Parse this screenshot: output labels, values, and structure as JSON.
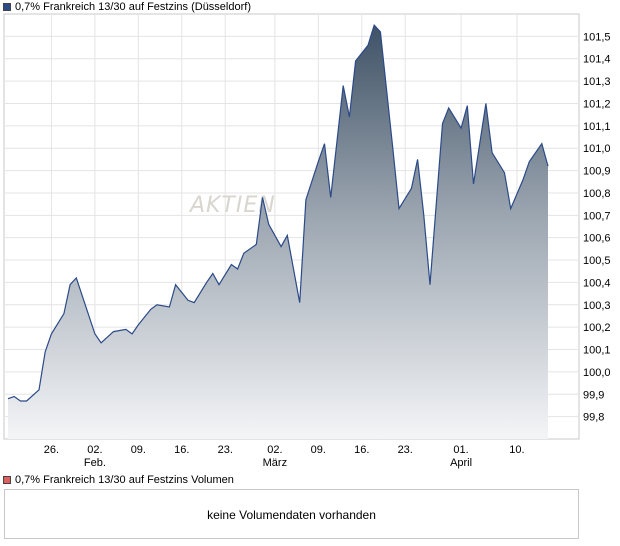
{
  "legend": {
    "price_label": "0,7% Frankreich 13/30 auf Festzins (Düsseldorf)",
    "price_color": "#2b4a88",
    "volume_label": "0,7% Frankreich 13/30 auf Festzins Volumen",
    "volume_color": "#e06060"
  },
  "watermark": "AKTIEN",
  "volume": {
    "message": "keine Volumendaten vorhanden"
  },
  "chart_data": {
    "type": "area",
    "title": "",
    "xlabel": "",
    "ylabel": "",
    "ylim": [
      99.7,
      101.6
    ],
    "y_ticks": [
      {
        "value": 99.8,
        "label": "99,8"
      },
      {
        "value": 99.9,
        "label": "99,9"
      },
      {
        "value": 100.0,
        "label": "100,0"
      },
      {
        "value": 100.1,
        "label": "100,1"
      },
      {
        "value": 100.2,
        "label": "100,2"
      },
      {
        "value": 100.3,
        "label": "100,3"
      },
      {
        "value": 100.4,
        "label": "100,4"
      },
      {
        "value": 100.5,
        "label": "100,5"
      },
      {
        "value": 100.6,
        "label": "100,6"
      },
      {
        "value": 100.7,
        "label": "100,7"
      },
      {
        "value": 100.8,
        "label": "100,8"
      },
      {
        "value": 100.9,
        "label": "100,9"
      },
      {
        "value": 101.0,
        "label": "101,0"
      },
      {
        "value": 101.1,
        "label": "101,1"
      },
      {
        "value": 101.2,
        "label": "101,2"
      },
      {
        "value": 101.3,
        "label": "101,3"
      },
      {
        "value": 101.4,
        "label": "101,4"
      },
      {
        "value": 101.5,
        "label": "101,5"
      }
    ],
    "x_ticks": [
      {
        "date": "2024-01-26",
        "label": "26.",
        "sub": ""
      },
      {
        "date": "2024-02-02",
        "label": "02.",
        "sub": "Feb."
      },
      {
        "date": "2024-02-09",
        "label": "09.",
        "sub": ""
      },
      {
        "date": "2024-02-16",
        "label": "16.",
        "sub": ""
      },
      {
        "date": "2024-02-23",
        "label": "23.",
        "sub": ""
      },
      {
        "date": "2024-03-02",
        "label": "02.",
        "sub": "März"
      },
      {
        "date": "2024-03-09",
        "label": "09.",
        "sub": ""
      },
      {
        "date": "2024-03-16",
        "label": "16.",
        "sub": ""
      },
      {
        "date": "2024-03-23",
        "label": "23.",
        "sub": ""
      },
      {
        "date": "2024-04-01",
        "label": "01.",
        "sub": "April"
      },
      {
        "date": "2024-04-10",
        "label": "10.",
        "sub": ""
      }
    ],
    "x_range": [
      "2024-01-19",
      "2024-04-20"
    ],
    "grid": true,
    "series": [
      {
        "name": "0,7% Frankreich 13/30 auf Festzins (Düsseldorf)",
        "points": [
          [
            "2024-01-19",
            99.88
          ],
          [
            "2024-01-20",
            99.89
          ],
          [
            "2024-01-21",
            99.87
          ],
          [
            "2024-01-22",
            99.87
          ],
          [
            "2024-01-24",
            99.92
          ],
          [
            "2024-01-25",
            100.09
          ],
          [
            "2024-01-26",
            100.17
          ],
          [
            "2024-01-28",
            100.26
          ],
          [
            "2024-01-29",
            100.39
          ],
          [
            "2024-01-30",
            100.42
          ],
          [
            "2024-02-02",
            100.17
          ],
          [
            "2024-02-03",
            100.13
          ],
          [
            "2024-02-05",
            100.18
          ],
          [
            "2024-02-07",
            100.19
          ],
          [
            "2024-02-08",
            100.17
          ],
          [
            "2024-02-09",
            100.21
          ],
          [
            "2024-02-11",
            100.28
          ],
          [
            "2024-02-12",
            100.3
          ],
          [
            "2024-02-14",
            100.29
          ],
          [
            "2024-02-15",
            100.39
          ],
          [
            "2024-02-17",
            100.32
          ],
          [
            "2024-02-18",
            100.31
          ],
          [
            "2024-02-20",
            100.4
          ],
          [
            "2024-02-21",
            100.44
          ],
          [
            "2024-02-22",
            100.39
          ],
          [
            "2024-02-24",
            100.48
          ],
          [
            "2024-02-25",
            100.46
          ],
          [
            "2024-02-26",
            100.53
          ],
          [
            "2024-02-28",
            100.57
          ],
          [
            "2024-02-29",
            100.78
          ],
          [
            "2024-03-01",
            100.66
          ],
          [
            "2024-03-03",
            100.56
          ],
          [
            "2024-03-04",
            100.61
          ],
          [
            "2024-03-06",
            100.31
          ],
          [
            "2024-03-07",
            100.77
          ],
          [
            "2024-03-09",
            100.94
          ],
          [
            "2024-03-10",
            101.02
          ],
          [
            "2024-03-11",
            100.78
          ],
          [
            "2024-03-13",
            101.28
          ],
          [
            "2024-03-14",
            101.14
          ],
          [
            "2024-03-15",
            101.39
          ],
          [
            "2024-03-17",
            101.46
          ],
          [
            "2024-03-18",
            101.55
          ],
          [
            "2024-03-19",
            101.52
          ],
          [
            "2024-03-21",
            101.0
          ],
          [
            "2024-03-22",
            100.73
          ],
          [
            "2024-03-24",
            100.82
          ],
          [
            "2024-03-25",
            100.95
          ],
          [
            "2024-03-26",
            100.7
          ],
          [
            "2024-03-27",
            100.39
          ],
          [
            "2024-03-29",
            101.11
          ],
          [
            "2024-03-30",
            101.18
          ],
          [
            "2024-04-01",
            101.09
          ],
          [
            "2024-04-02",
            101.19
          ],
          [
            "2024-04-03",
            100.84
          ],
          [
            "2024-04-05",
            101.2
          ],
          [
            "2024-04-06",
            100.98
          ],
          [
            "2024-04-08",
            100.89
          ],
          [
            "2024-04-09",
            100.73
          ],
          [
            "2024-04-11",
            100.86
          ],
          [
            "2024-04-12",
            100.94
          ],
          [
            "2024-04-14",
            101.02
          ],
          [
            "2024-04-15",
            100.92
          ]
        ]
      }
    ]
  }
}
